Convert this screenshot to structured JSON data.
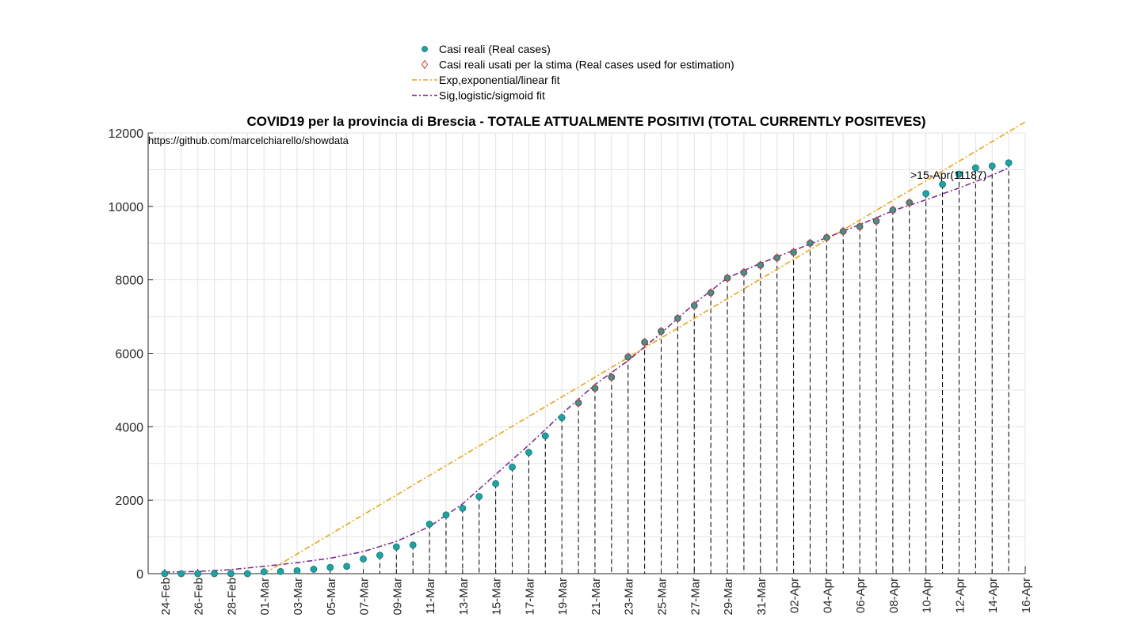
{
  "chart_data": {
    "type": "scatter",
    "title": "COVID19 per la provincia di Brescia - TOTALE ATTUALMENTE POSITIVI (TOTAL CURRENTLY POSITEVES)",
    "source_note": "https://github.com/marcelchiarello/showdata",
    "annotation": ">15-Apr(11187)",
    "xlabel": "",
    "ylabel": "",
    "ylim": [
      0,
      12000
    ],
    "yticks": [
      0,
      2000,
      4000,
      6000,
      8000,
      10000,
      12000
    ],
    "xlim": [
      -1,
      52
    ],
    "xtick_positions": [
      0,
      2,
      4,
      6,
      8,
      10,
      12,
      14,
      16,
      18,
      20,
      22,
      24,
      26,
      28,
      30,
      32,
      34,
      36,
      38,
      40,
      42,
      44,
      46,
      48,
      50,
      52
    ],
    "xtick_labels": [
      "24-Feb",
      "26-Feb",
      "28-Feb",
      "01-Mar",
      "03-Mar",
      "05-Mar",
      "07-Mar",
      "09-Mar",
      "11-Mar",
      "13-Mar",
      "15-Mar",
      "17-Mar",
      "19-Mar",
      "21-Mar",
      "23-Mar",
      "25-Mar",
      "27-Mar",
      "29-Mar",
      "31-Mar",
      "02-Apr",
      "04-Apr",
      "06-Apr",
      "08-Apr",
      "10-Apr",
      "12-Apr",
      "14-Apr",
      "16-Apr"
    ],
    "grid": true,
    "legend_position": "top",
    "legend": [
      {
        "label": "Casi reali (Real cases)",
        "marker": "circle"
      },
      {
        "label": "Casi reali usati per la stima (Real cases used for estimation)",
        "marker": "diamond"
      },
      {
        "label": "Exp,exponential/linear fit",
        "marker": "dashdot-orange"
      },
      {
        "label": "Sig,logistic/sigmoid fit",
        "marker": "dashdot-purple"
      }
    ],
    "series": [
      {
        "name": "Casi reali (Real cases)",
        "x": [
          0,
          1,
          2,
          3,
          4,
          5,
          6,
          7,
          8,
          9,
          10,
          11,
          12,
          13,
          14,
          15,
          16,
          17,
          18,
          19,
          20,
          21,
          22,
          23,
          24,
          25,
          26,
          27,
          28,
          29,
          30,
          31,
          32,
          33,
          34,
          35,
          36,
          37,
          38,
          39,
          40,
          41,
          42,
          43,
          44,
          45,
          46,
          47,
          48,
          49,
          50,
          51
        ],
        "values": [
          0,
          0,
          0,
          0,
          0,
          0,
          50,
          60,
          80,
          120,
          170,
          200,
          400,
          500,
          730,
          780,
          1350,
          1600,
          1780,
          2100,
          2450,
          2900,
          3300,
          3750,
          4250,
          4650,
          5050,
          5350,
          5900,
          6300,
          6600,
          6950,
          7300,
          7650,
          8050,
          8200,
          8400,
          8600,
          8750,
          9000,
          9150,
          9320,
          9450,
          9600,
          9900,
          10100,
          10350,
          10600,
          10880,
          11050,
          11100,
          11187
        ],
        "color": "#17a5a5"
      },
      {
        "name": "Casi reali usati per la stima (Real cases used for estimation)",
        "x": [
          25,
          26,
          27,
          28,
          29,
          30,
          31,
          32,
          33,
          34,
          35,
          36,
          37,
          38,
          39,
          40,
          41,
          42,
          43,
          44,
          45
        ],
        "values": [
          4650,
          5050,
          5350,
          5900,
          6300,
          6600,
          6950,
          7300,
          7650,
          8050,
          8200,
          8400,
          8600,
          8750,
          9000,
          9150,
          9320,
          9450,
          9600,
          9900,
          10100
        ],
        "color": "#e8352a"
      },
      {
        "name": "Exp,exponential/linear fit",
        "x": [
          6,
          52
        ],
        "values": [
          0,
          12300
        ],
        "color": "#f0a40f"
      },
      {
        "name": "Sig,logistic/sigmoid fit",
        "x": [
          0,
          2,
          4,
          6,
          8,
          10,
          12,
          14,
          16,
          18,
          20,
          22,
          24,
          26,
          28,
          30,
          32,
          34,
          36,
          38,
          40,
          42,
          44,
          46,
          48,
          50,
          51
        ],
        "values": [
          40,
          60,
          110,
          200,
          300,
          420,
          600,
          880,
          1280,
          1900,
          2700,
          3500,
          4350,
          5150,
          5800,
          6550,
          7350,
          8050,
          8450,
          8800,
          9150,
          9500,
          9880,
          10180,
          10500,
          10850,
          11050
        ],
        "color": "#7e2f8e"
      }
    ],
    "highlight_x": 51
  }
}
